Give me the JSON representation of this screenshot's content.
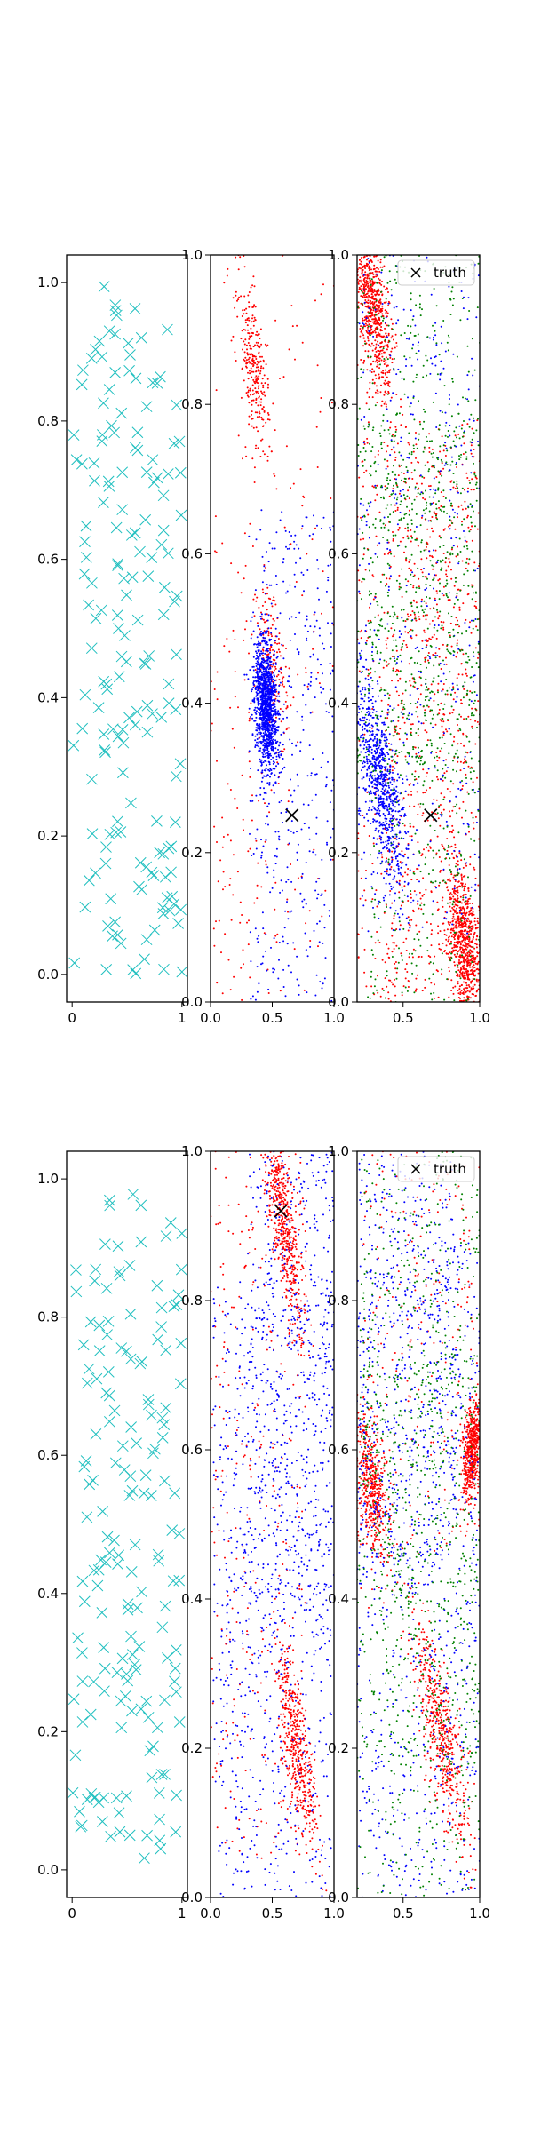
{
  "figure": {
    "background": "#ffffff",
    "description_rows": 2,
    "description_cols": 3
  },
  "colors": {
    "samples": "#1fbfbf",
    "cluster_red": "#ff0000",
    "cluster_blue": "#0000ff",
    "cluster_green": "#008000",
    "truth": "#000000",
    "axis": "#000000"
  },
  "chart_data": [
    {
      "id": "row1-samples",
      "type": "scatter",
      "marker": "x",
      "color": "#1fbfbf",
      "xlim": [
        -0.05,
        1.05
      ],
      "ylim": [
        -0.04,
        1.04
      ],
      "xticks": [
        0,
        1
      ],
      "xtick_labels": [
        "0",
        "1"
      ],
      "yticks": [
        0.0,
        0.2,
        0.4,
        0.6,
        0.8,
        1.0
      ],
      "ytick_labels": [
        "0.0",
        "0.2",
        "0.4",
        "0.6",
        "0.8",
        "1.0"
      ],
      "series": [
        {
          "name": "samples",
          "n_points": 170,
          "distribution": "uniform over [0,1]x[0,1]"
        }
      ]
    },
    {
      "id": "row1-two-clusters",
      "type": "scatter",
      "marker": "dot",
      "xlim": [
        0.0,
        1.0
      ],
      "ylim": [
        0.0,
        1.0
      ],
      "xticks": [
        0.0,
        0.5,
        1.0
      ],
      "xtick_labels": [
        "0.0",
        "0.5",
        "1.0"
      ],
      "yticks": [
        0.0,
        0.2,
        0.4,
        0.6,
        0.8,
        1.0
      ],
      "ytick_labels": [
        "0.0",
        "0.2",
        "0.4",
        "0.6",
        "0.8",
        "1.0"
      ],
      "series": [
        {
          "name": "red",
          "color": "#ff0000",
          "bands": [
            [
              0.65,
              0.24,
              1.0,
              0.28
            ],
            [
              0.08,
              0.02,
              0.6,
              0.18
            ],
            [
              0.5,
              0.45,
              0.3,
              0.12
            ],
            [
              0.35,
              0.85,
              0.3,
              0.2
            ]
          ]
        },
        {
          "name": "blue",
          "color": "#0000ff",
          "bands": [
            [
              0.75,
              0.22,
              0.55,
              0.45
            ],
            [
              0.45,
              0.4,
              0.2,
              0.9
            ]
          ]
        }
      ],
      "truth": [
        {
          "x": 0.66,
          "y": 0.25
        }
      ]
    },
    {
      "id": "row1-three-clusters",
      "type": "scatter",
      "marker": "dot",
      "xlim": [
        0.2,
        1.0
      ],
      "ylim": [
        0.0,
        1.0
      ],
      "xticks": [
        0.5,
        1.0
      ],
      "xtick_labels": [
        "0.5",
        "1.0"
      ],
      "yticks": [
        0.0,
        0.2,
        0.4,
        0.6,
        0.8,
        1.0
      ],
      "ytick_labels": [
        "0.0",
        "0.2",
        "0.4",
        "0.6",
        "0.8",
        "1.0"
      ],
      "legend": {
        "label": "truth",
        "marker": "x",
        "position": "top-right"
      },
      "series": [
        {
          "name": "red",
          "color": "#ff0000",
          "bands": [
            [
              0.78,
              0.38,
              0.5,
              0.55
            ],
            [
              0.45,
              0.28,
              0.6,
              0.58
            ],
            [
              0.3,
              0.93,
              0.3,
              0.55
            ],
            [
              0.9,
              0.08,
              0.25,
              0.5
            ]
          ]
        },
        {
          "name": "blue",
          "color": "#0000ff",
          "bands": [
            [
              0.55,
              0.65,
              0.7,
              0.6
            ],
            [
              0.35,
              0.3,
              0.4,
              0.55
            ]
          ]
        },
        {
          "name": "green",
          "color": "#008000",
          "bands": [
            [
              0.75,
              0.3,
              0.6,
              0.6
            ],
            [
              0.6,
              0.7,
              0.5,
              0.5
            ]
          ]
        }
      ],
      "truth": [
        {
          "x": 0.68,
          "y": 0.25
        }
      ]
    },
    {
      "id": "row2-samples",
      "type": "scatter",
      "marker": "x",
      "color": "#1fbfbf",
      "xlim": [
        -0.05,
        1.05
      ],
      "ylim": [
        -0.04,
        1.04
      ],
      "xticks": [
        0,
        1
      ],
      "xtick_labels": [
        "0",
        "1"
      ],
      "yticks": [
        0.0,
        0.2,
        0.4,
        0.6,
        0.8,
        1.0
      ],
      "ytick_labels": [
        "0.0",
        "0.2",
        "0.4",
        "0.6",
        "0.8",
        "1.0"
      ],
      "series": [
        {
          "name": "samples",
          "n_points": 170,
          "distribution": "uniform over [0,1]x[0,1]"
        }
      ]
    },
    {
      "id": "row2-two-clusters",
      "type": "scatter",
      "marker": "dot",
      "xlim": [
        0.0,
        1.0
      ],
      "ylim": [
        0.0,
        1.0
      ],
      "xticks": [
        0.0,
        0.5,
        1.0
      ],
      "xtick_labels": [
        "0.0",
        "0.5",
        "1.0"
      ],
      "yticks": [
        0.0,
        0.2,
        0.4,
        0.6,
        0.8,
        1.0
      ],
      "ytick_labels": [
        "0.0",
        "0.2",
        "0.4",
        "0.6",
        "0.8",
        "1.0"
      ],
      "series": [
        {
          "name": "red",
          "color": "#ff0000",
          "bands": [
            [
              0.3,
              0.53,
              0.6,
              0.28
            ],
            [
              0.6,
              0.9,
              0.4,
              0.4
            ],
            [
              0.7,
              0.2,
              0.4,
              0.35
            ]
          ]
        },
        {
          "name": "blue",
          "color": "#0000ff",
          "bands": [
            [
              0.7,
              0.75,
              0.5,
              0.55
            ],
            [
              0.5,
              0.35,
              0.6,
              0.6
            ]
          ]
        }
      ],
      "truth": [
        {
          "x": 0.57,
          "y": 0.92
        }
      ]
    },
    {
      "id": "row2-three-clusters",
      "type": "scatter",
      "marker": "dot",
      "xlim": [
        0.2,
        1.0
      ],
      "ylim": [
        0.0,
        1.0
      ],
      "xticks": [
        0.5,
        1.0
      ],
      "xtick_labels": [
        "0.5",
        "1.0"
      ],
      "yticks": [
        0.0,
        0.2,
        0.4,
        0.6,
        0.8,
        1.0
      ],
      "ytick_labels": [
        "0.0",
        "0.2",
        "0.4",
        "0.6",
        "0.8",
        "1.0"
      ],
      "legend": {
        "label": "truth",
        "marker": "x",
        "position": "top-right"
      },
      "series": [
        {
          "name": "red",
          "color": "#ff0000",
          "bands": [
            [
              0.55,
              0.94,
              0.6,
              0.35
            ],
            [
              0.75,
              0.22,
              0.45,
              0.4
            ],
            [
              0.3,
              0.55,
              0.25,
              0.35
            ],
            [
              0.95,
              0.6,
              0.1,
              0.4
            ]
          ]
        },
        {
          "name": "blue",
          "color": "#0000ff",
          "bands": [
            [
              0.45,
              0.85,
              0.5,
              0.55
            ],
            [
              0.6,
              0.4,
              0.6,
              0.7
            ]
          ]
        },
        {
          "name": "green",
          "color": "#008000",
          "bands": [
            [
              0.7,
              0.65,
              0.6,
              0.6
            ],
            [
              0.6,
              0.25,
              0.6,
              0.5
            ]
          ]
        }
      ],
      "truth": []
    }
  ]
}
